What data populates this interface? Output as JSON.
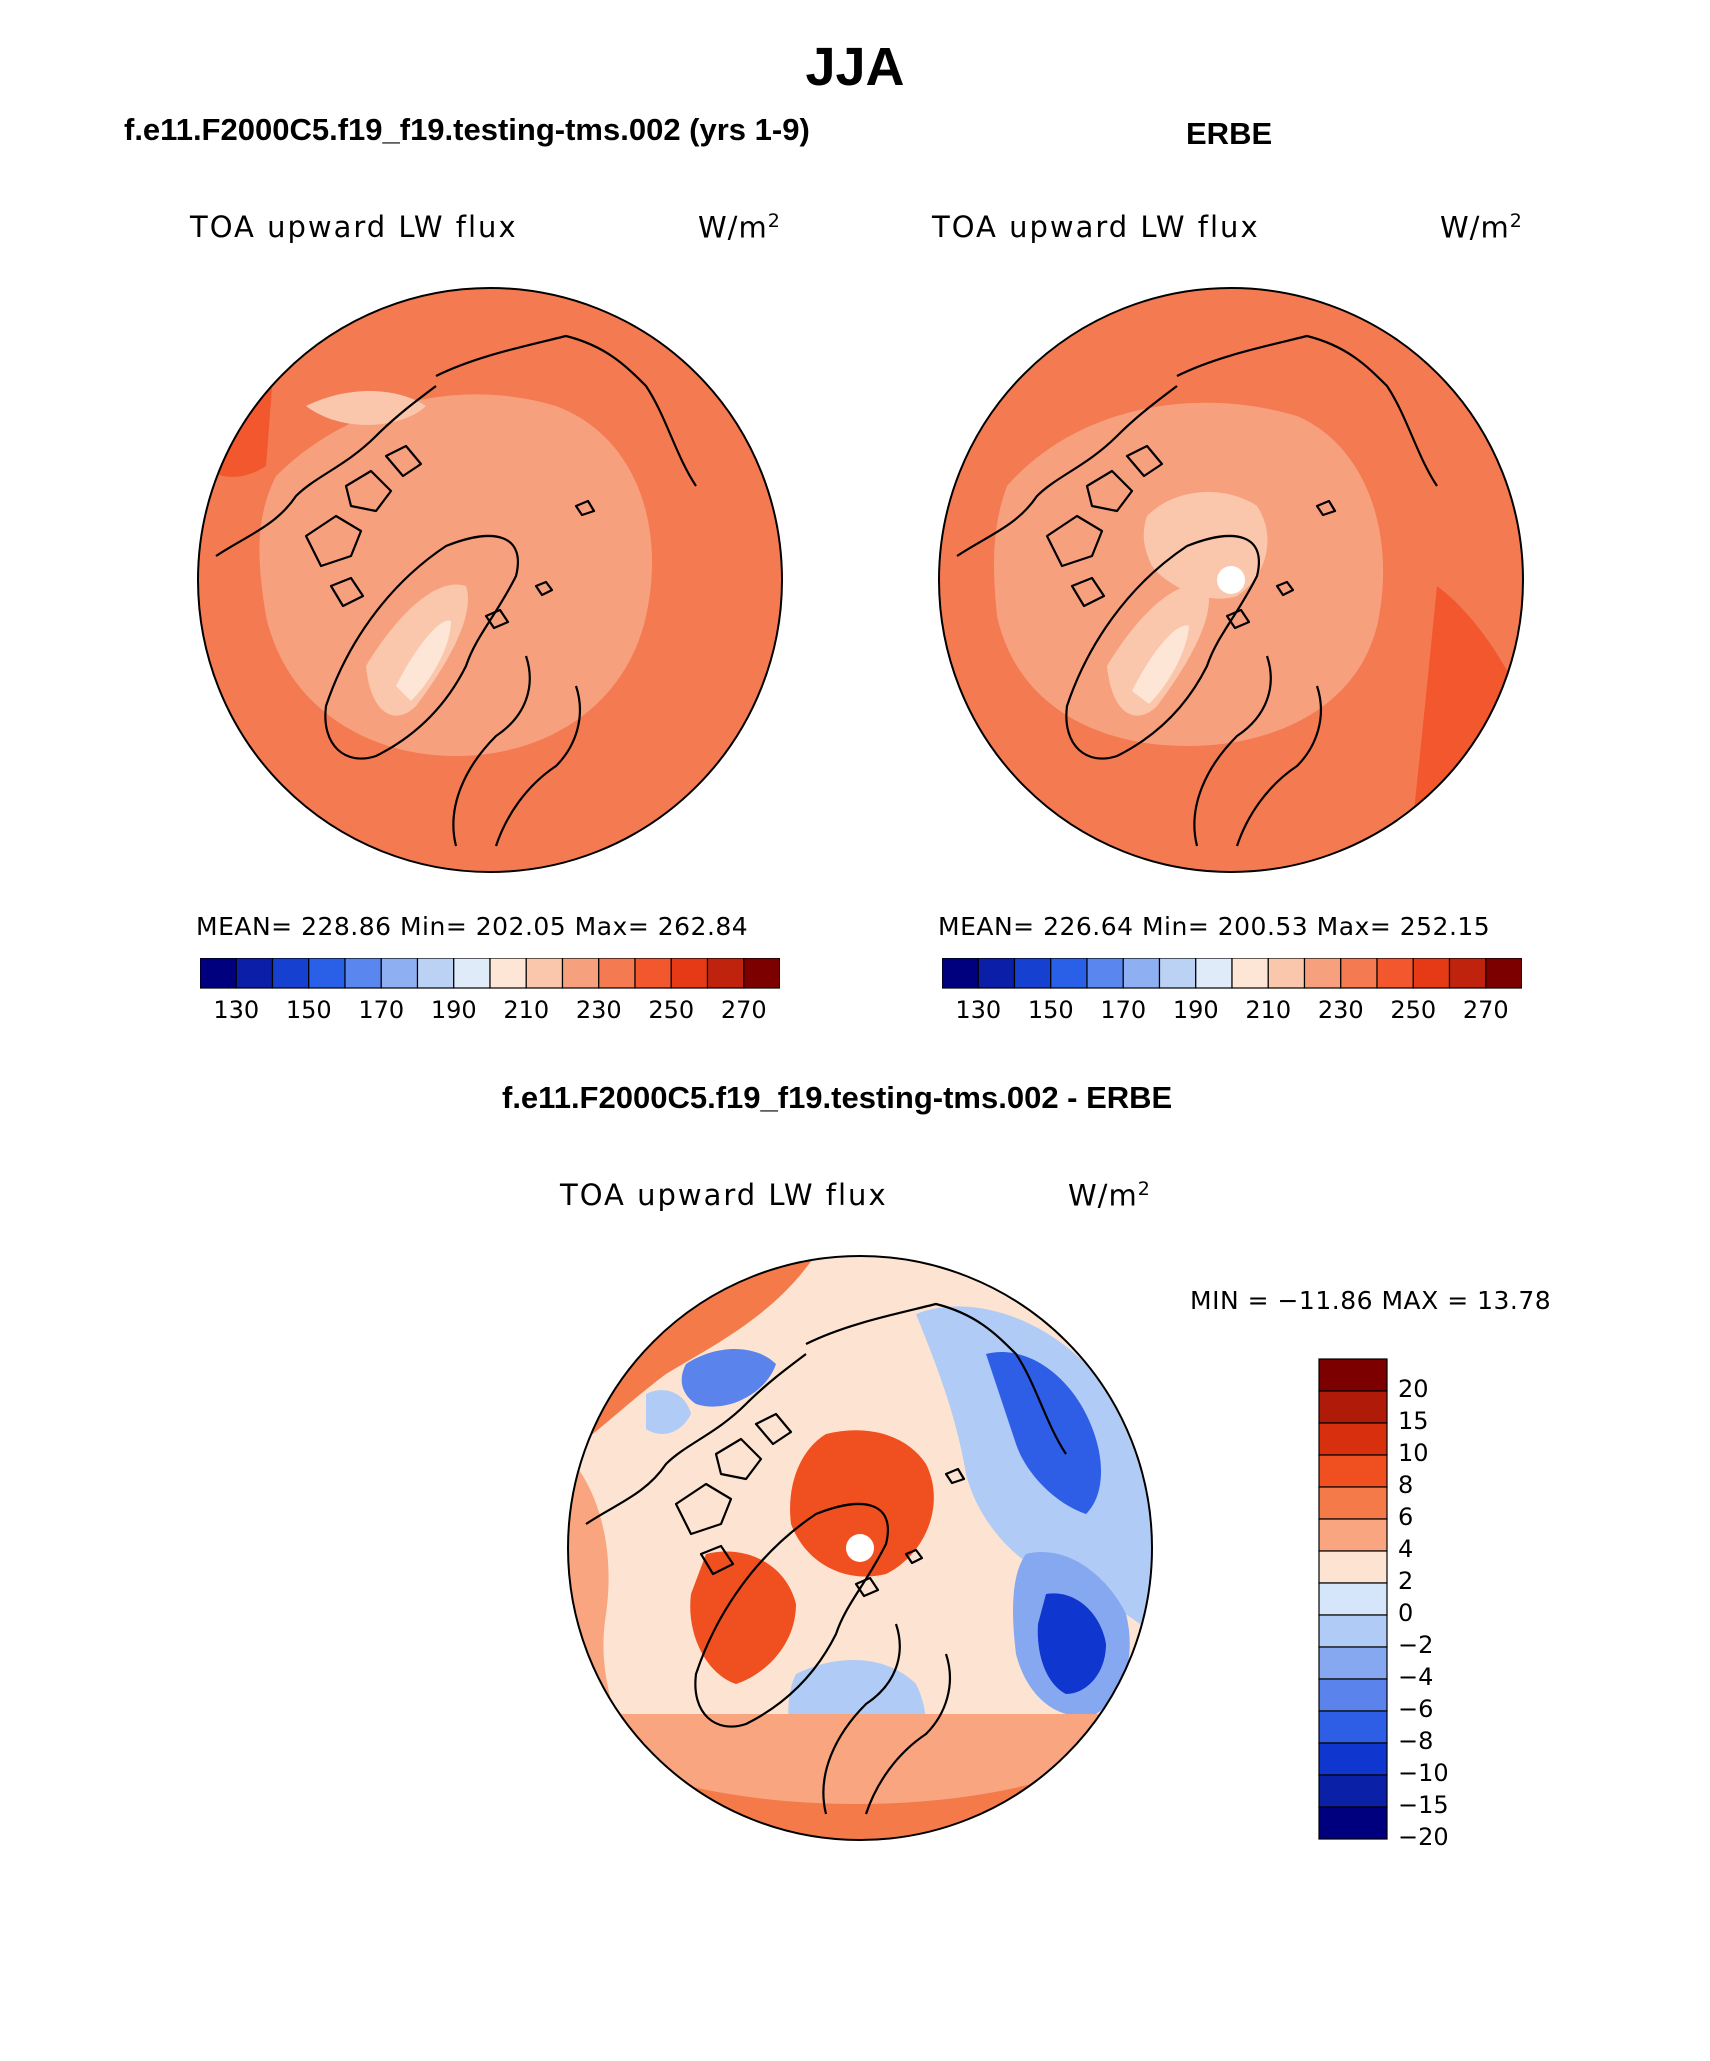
{
  "title": "JJA",
  "panels": [
    {
      "id": "model",
      "heading": "f.e11.F2000C5.f19_f19.testing-tms.002 (yrs 1-9)",
      "variable": "TOA upward LW flux",
      "units_base": "W/m",
      "units_exp": "2",
      "stats": "MEAN= 228.86   Min= 202.05   Max= 262.84",
      "has_missing_pole": false
    },
    {
      "id": "obs",
      "heading": "ERBE",
      "variable": "TOA upward LW flux",
      "units_base": "W/m",
      "units_exp": "2",
      "stats": "MEAN= 226.64   Min= 200.53   Max= 252.15",
      "has_missing_pole": true
    }
  ],
  "colorbar_abs": {
    "colors": [
      "#00007f",
      "#0a1ea8",
      "#1540d0",
      "#2a5fe8",
      "#5a86ef",
      "#8eb0f2",
      "#bcd2f5",
      "#e0ebfa",
      "#fde6d5",
      "#fac7ad",
      "#f7a07e",
      "#f47a52",
      "#f2572d",
      "#e63a17",
      "#c0230d",
      "#7d0000"
    ],
    "tick_labels": [
      "130",
      "150",
      "170",
      "190",
      "210",
      "230",
      "250",
      "270"
    ]
  },
  "difference": {
    "heading": "f.e11.F2000C5.f19_f19.testing-tms.002 - ERBE",
    "variable": "TOA upward LW flux",
    "units_base": "W/m",
    "units_exp": "2",
    "minmax": "MIN = −11.86 MAX =   13.78",
    "colorbar": {
      "colors": [
        "#7d0000",
        "#b01a08",
        "#d8300f",
        "#f0501f",
        "#f47a4a",
        "#f8a580",
        "#fde4d2",
        "#d6e6fa",
        "#b0cbf5",
        "#86a8f0",
        "#5a84ec",
        "#2e5ee6",
        "#1036d0",
        "#0a20a6",
        "#00007f"
      ],
      "tick_labels": [
        "20",
        "15",
        "10",
        "8",
        "6",
        "4",
        "2",
        "0",
        "−2",
        "−4",
        "−6",
        "−8",
        "−10",
        "−15",
        "−20"
      ]
    }
  }
}
